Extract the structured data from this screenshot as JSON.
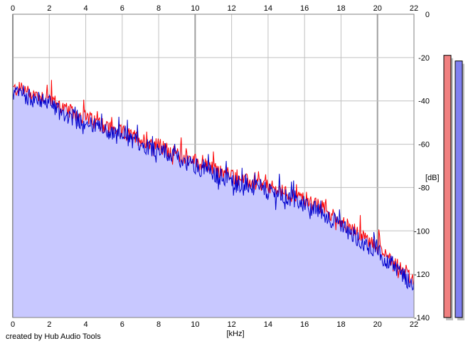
{
  "credit": "created by Hub Audio Tools",
  "chart_data": {
    "type": "line",
    "title": "",
    "xlabel": "[kHz]",
    "ylabel": "[dB]",
    "xlim": [
      0,
      22
    ],
    "ylim": [
      -140,
      0
    ],
    "x_ticks": [
      0,
      2,
      4,
      6,
      8,
      10,
      12,
      14,
      16,
      18,
      20,
      22
    ],
    "y_ticks": [
      0,
      -20,
      -40,
      -60,
      -80,
      -100,
      -120,
      -140
    ],
    "grid": true,
    "colors": {
      "fill": "#c8c8ff",
      "red_series": "#ff0000",
      "blue_series": "#0000cc",
      "grid": "#c0c0c0",
      "major_grid": "#a0a0a0",
      "meter_left": "#f08080",
      "meter_right": "#8080f0"
    },
    "envelope": {
      "x": [
        0,
        0.5,
        1,
        1.5,
        2,
        2.5,
        3,
        4,
        5,
        6,
        7,
        8,
        9,
        10,
        11,
        12,
        13,
        14,
        15,
        16,
        17,
        18,
        19,
        20,
        21,
        22
      ],
      "y": [
        -38,
        -38,
        -40,
        -41,
        -42,
        -45,
        -48,
        -51,
        -55,
        -58,
        -61,
        -64,
        -68,
        -71,
        -75,
        -78,
        -81,
        -83,
        -86,
        -89,
        -93,
        -99,
        -105,
        -111,
        -118,
        -127
      ]
    },
    "series": [
      {
        "color": "#ff0000",
        "offset": 2,
        "spread": 7
      },
      {
        "color": "#0000cc",
        "offset": 0,
        "spread": 8
      }
    ],
    "meters": [
      {
        "channel": "left",
        "color": "#f08080",
        "level": 0.93
      },
      {
        "channel": "right",
        "color": "#8080f0",
        "level": 0.91
      }
    ]
  }
}
